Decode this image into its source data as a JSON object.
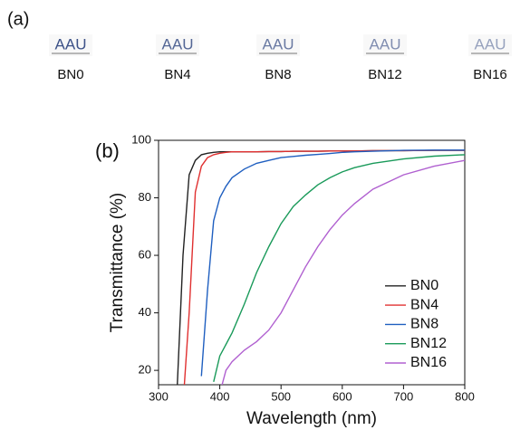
{
  "panel_a": {
    "label": "(a)",
    "samples": [
      {
        "image_text": "AAU",
        "label": "BN0"
      },
      {
        "image_text": "AAU",
        "label": "BN4"
      },
      {
        "image_text": "AAU",
        "label": "BN8"
      },
      {
        "image_text": "AAU",
        "label": "BN12"
      },
      {
        "image_text": "AAU",
        "label": "BN16"
      }
    ]
  },
  "chart_data": {
    "type": "line",
    "panel_label": "(b)",
    "x_label": "Wavelength (nm)",
    "y_label": "Transmittance (%)",
    "x": [
      320,
      330,
      340,
      350,
      360,
      370,
      380,
      390,
      400,
      410,
      420,
      440,
      460,
      480,
      500,
      520,
      540,
      560,
      580,
      600,
      620,
      650,
      700,
      750,
      800
    ],
    "series": [
      {
        "name": "BN0",
        "color": "#222222",
        "values": [
          null,
          12,
          60,
          88,
          93,
          95,
          95.5,
          95.8,
          96,
          96,
          96,
          96,
          96,
          96.1,
          96.1,
          96.2,
          96.2,
          96.2,
          96.3,
          96.3,
          96.3,
          96.4,
          96.4,
          96.5,
          96.5
        ]
      },
      {
        "name": "BN4",
        "color": "#e03030",
        "values": [
          null,
          null,
          8,
          40,
          82,
          91,
          94,
          95,
          95.5,
          95.8,
          96,
          96,
          96,
          96.1,
          96.1,
          96.2,
          96.2,
          96.2,
          96.3,
          96.3,
          96.3,
          96.4,
          96.4,
          96.5,
          96.5
        ]
      },
      {
        "name": "BN8",
        "color": "#1f5fc0",
        "values": [
          null,
          null,
          null,
          null,
          null,
          18,
          48,
          72,
          80,
          84,
          87,
          90,
          92,
          93,
          94,
          94.4,
          94.8,
          95.1,
          95.4,
          95.8,
          96,
          96.2,
          96.5,
          96.6,
          96.6
        ]
      },
      {
        "name": "BN12",
        "color": "#1a9a5a",
        "values": [
          null,
          null,
          null,
          null,
          null,
          null,
          null,
          16,
          25,
          29,
          33,
          43,
          54,
          63,
          71,
          77,
          81,
          84.5,
          87,
          89,
          90.5,
          92,
          93.5,
          94.5,
          95
        ]
      },
      {
        "name": "BN16",
        "color": "#b060d0",
        "values": [
          null,
          null,
          null,
          null,
          null,
          null,
          null,
          null,
          12,
          20,
          23,
          27,
          30,
          34,
          40,
          48,
          56,
          63,
          69,
          74,
          78,
          83,
          88,
          91,
          93
        ]
      }
    ],
    "xlim": [
      300,
      800
    ],
    "xticks": [
      300,
      400,
      500,
      600,
      700,
      800
    ],
    "ylim": [
      15,
      100
    ],
    "yticks": [
      20,
      40,
      60,
      80,
      100
    ],
    "legend": "lower right",
    "grid": false
  }
}
